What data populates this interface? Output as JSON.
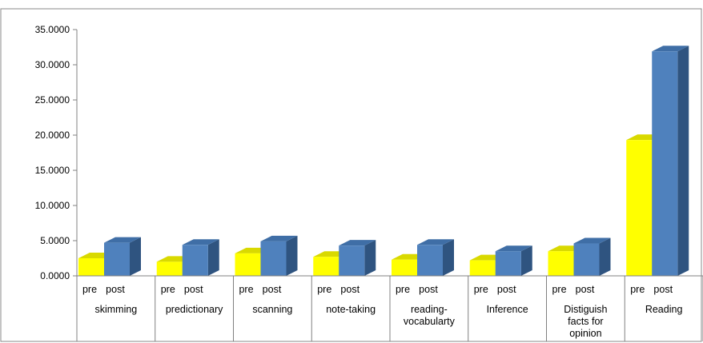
{
  "chart_data": {
    "type": "bar",
    "title": "",
    "xlabel": "",
    "ylabel": "",
    "ylim": [
      0,
      35
    ],
    "y_ticks": [
      "0.0000",
      "5.0000",
      "10.0000",
      "15.0000",
      "20.0000",
      "25.0000",
      "30.0000",
      "35.0000"
    ],
    "categories": [
      "skimming",
      "predictionary",
      "scanning",
      "note-taking",
      "reading-vocabularty",
      "Inference",
      "Distiguish facts for opinion",
      "Reading"
    ],
    "category_lines": [
      [
        "skimming"
      ],
      [
        "predictionary"
      ],
      [
        "scanning"
      ],
      [
        "note-taking"
      ],
      [
        "reading-",
        "vocabularty"
      ],
      [
        "Inference"
      ],
      [
        "Distiguish",
        "facts for",
        "opinion"
      ],
      [
        "Reading"
      ]
    ],
    "series": [
      {
        "name": "pre",
        "values": [
          2.5,
          2.0,
          3.2,
          2.7,
          2.3,
          2.2,
          3.5,
          19.3
        ]
      },
      {
        "name": "post",
        "values": [
          4.7,
          4.4,
          4.9,
          4.3,
          4.4,
          3.5,
          4.6,
          31.9
        ]
      }
    ],
    "grid": false,
    "legend": "none",
    "three_d": true,
    "colors": {
      "pre_front": "#ffff00",
      "pre_top": "#d9d900",
      "pre_side": "#b8b800",
      "post_front": "#4f81bd",
      "post_top": "#3f6ea6",
      "post_side": "#2f5480",
      "axis": "#808080",
      "frame": "#888888"
    }
  }
}
